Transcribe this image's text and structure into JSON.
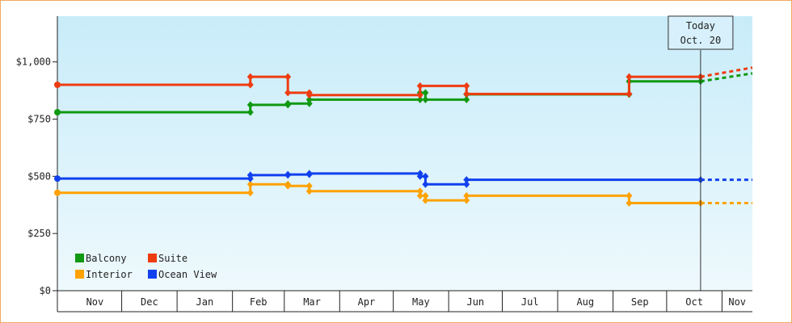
{
  "chart_data": {
    "type": "line",
    "line_style": "step",
    "currency_prefix": "$",
    "ylim": [
      0,
      1200
    ],
    "y_ticks": [
      0,
      250,
      500,
      750,
      1000
    ],
    "y_tick_labels": [
      "$0",
      "$250",
      "$500",
      "$750",
      "$1,000"
    ],
    "x_start": "2019-10-26",
    "x_end": "2020-11-18",
    "x_month_labels": [
      {
        "label": "Nov",
        "start": "2019-11-01",
        "end": "2019-11-30"
      },
      {
        "label": "Dec",
        "start": "2019-12-01",
        "end": "2019-12-31"
      },
      {
        "label": "Jan",
        "start": "2020-01-01",
        "end": "2020-01-31"
      },
      {
        "label": "Feb",
        "start": "2020-02-01",
        "end": "2020-02-29"
      },
      {
        "label": "Mar",
        "start": "2020-03-01",
        "end": "2020-03-31"
      },
      {
        "label": "Apr",
        "start": "2020-04-01",
        "end": "2020-04-30"
      },
      {
        "label": "May",
        "start": "2020-05-01",
        "end": "2020-05-31"
      },
      {
        "label": "Jun",
        "start": "2020-06-01",
        "end": "2020-06-30"
      },
      {
        "label": "Jul",
        "start": "2020-07-01",
        "end": "2020-07-31"
      },
      {
        "label": "Aug",
        "start": "2020-08-01",
        "end": "2020-08-31"
      },
      {
        "label": "Sep",
        "start": "2020-09-01",
        "end": "2020-09-30"
      },
      {
        "label": "Oct",
        "start": "2020-10-01",
        "end": "2020-10-31"
      },
      {
        "label": "Nov",
        "start": "2020-11-01",
        "end": "2020-11-18"
      }
    ],
    "today_marker": {
      "line1": "Today",
      "line2": "Oct. 20",
      "date": "2020-10-20"
    },
    "grid": false,
    "background_gradient": [
      "#c8ecf9",
      "#eef9fd"
    ],
    "legend_position": "bottom-left",
    "series": [
      {
        "name": "Balcony",
        "color": "#119911",
        "points": [
          {
            "x": "2019-10-26",
            "y": 780
          },
          {
            "x": "2020-02-11",
            "y": 780
          },
          {
            "x": "2020-02-11",
            "y": 812
          },
          {
            "x": "2020-03-03",
            "y": 812
          },
          {
            "x": "2020-03-03",
            "y": 818
          },
          {
            "x": "2020-03-15",
            "y": 818
          },
          {
            "x": "2020-03-15",
            "y": 835
          },
          {
            "x": "2020-05-16",
            "y": 835
          },
          {
            "x": "2020-05-16",
            "y": 865
          },
          {
            "x": "2020-05-19",
            "y": 865
          },
          {
            "x": "2020-05-19",
            "y": 835
          },
          {
            "x": "2020-06-11",
            "y": 835
          },
          {
            "x": "2020-06-11",
            "y": 858
          },
          {
            "x": "2020-09-10",
            "y": 858
          },
          {
            "x": "2020-09-10",
            "y": 915
          },
          {
            "x": "2020-10-20",
            "y": 915
          }
        ],
        "projection": {
          "x": "2020-11-18",
          "y": 950
        }
      },
      {
        "name": "Suite",
        "color": "#ee3c11",
        "points": [
          {
            "x": "2019-10-26",
            "y": 900
          },
          {
            "x": "2020-02-11",
            "y": 900
          },
          {
            "x": "2020-02-11",
            "y": 935
          },
          {
            "x": "2020-03-03",
            "y": 935
          },
          {
            "x": "2020-03-03",
            "y": 865
          },
          {
            "x": "2020-03-15",
            "y": 865
          },
          {
            "x": "2020-03-15",
            "y": 855
          },
          {
            "x": "2020-05-16",
            "y": 855
          },
          {
            "x": "2020-05-16",
            "y": 895
          },
          {
            "x": "2020-06-11",
            "y": 895
          },
          {
            "x": "2020-06-11",
            "y": 860
          },
          {
            "x": "2020-09-10",
            "y": 860
          },
          {
            "x": "2020-09-10",
            "y": 935
          },
          {
            "x": "2020-10-20",
            "y": 935
          }
        ],
        "projection": {
          "x": "2020-11-18",
          "y": 975
        }
      },
      {
        "name": "Interior",
        "color": "#ffa200",
        "points": [
          {
            "x": "2019-10-26",
            "y": 428
          },
          {
            "x": "2020-02-11",
            "y": 428
          },
          {
            "x": "2020-02-11",
            "y": 465
          },
          {
            "x": "2020-03-03",
            "y": 465
          },
          {
            "x": "2020-03-03",
            "y": 458
          },
          {
            "x": "2020-03-15",
            "y": 458
          },
          {
            "x": "2020-03-15",
            "y": 435
          },
          {
            "x": "2020-05-16",
            "y": 435
          },
          {
            "x": "2020-05-16",
            "y": 415
          },
          {
            "x": "2020-05-19",
            "y": 415
          },
          {
            "x": "2020-05-19",
            "y": 395
          },
          {
            "x": "2020-06-11",
            "y": 395
          },
          {
            "x": "2020-06-11",
            "y": 415
          },
          {
            "x": "2020-09-10",
            "y": 415
          },
          {
            "x": "2020-09-10",
            "y": 383
          },
          {
            "x": "2020-10-20",
            "y": 383
          }
        ],
        "projection": {
          "x": "2020-11-18",
          "y": 383
        }
      },
      {
        "name": "Ocean View",
        "color": "#1140ee",
        "points": [
          {
            "x": "2019-10-26",
            "y": 490
          },
          {
            "x": "2020-02-11",
            "y": 490
          },
          {
            "x": "2020-02-11",
            "y": 505
          },
          {
            "x": "2020-03-03",
            "y": 505
          },
          {
            "x": "2020-03-03",
            "y": 508
          },
          {
            "x": "2020-03-15",
            "y": 508
          },
          {
            "x": "2020-03-15",
            "y": 512
          },
          {
            "x": "2020-05-16",
            "y": 512
          },
          {
            "x": "2020-05-16",
            "y": 500
          },
          {
            "x": "2020-05-19",
            "y": 500
          },
          {
            "x": "2020-05-19",
            "y": 465
          },
          {
            "x": "2020-06-11",
            "y": 465
          },
          {
            "x": "2020-06-11",
            "y": 485
          },
          {
            "x": "2020-10-20",
            "y": 485
          }
        ],
        "projection": {
          "x": "2020-11-18",
          "y": 485
        }
      }
    ],
    "legend_order": [
      "Balcony",
      "Suite",
      "Interior",
      "Ocean View"
    ]
  }
}
